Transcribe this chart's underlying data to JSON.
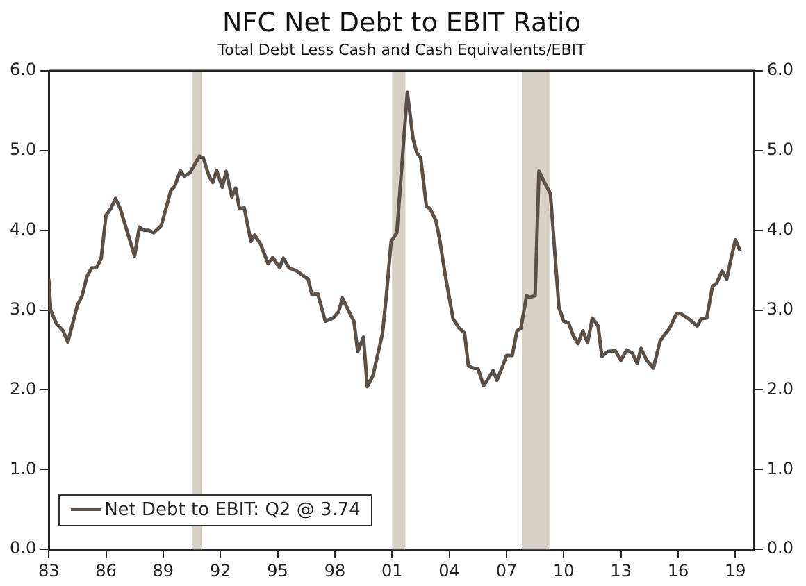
{
  "chart_data": {
    "type": "line",
    "title": "NFC Net Debt to EBIT Ratio",
    "subtitle": "Total Debt Less Cash and Cash Equivalents/EBIT",
    "x": [
      1983.0,
      1983.1,
      1983.4,
      1983.75,
      1984.0,
      1984.5,
      1984.75,
      1985.0,
      1985.25,
      1985.5,
      1985.75,
      1986.0,
      1986.25,
      1986.5,
      1986.75,
      1987.5,
      1987.75,
      1988.0,
      1988.25,
      1988.5,
      1988.9,
      1989.4,
      1989.6,
      1989.9,
      1990.1,
      1990.4,
      1990.9,
      1991.1,
      1991.4,
      1991.6,
      1991.8,
      1992.1,
      1992.3,
      1992.6,
      1992.8,
      1993.0,
      1993.25,
      1993.6,
      1993.8,
      1994.1,
      1994.5,
      1994.75,
      1995.1,
      1995.3,
      1995.6,
      1996.0,
      1996.4,
      1996.6,
      1996.8,
      1997.1,
      1997.5,
      1997.9,
      1998.2,
      1998.4,
      1998.7,
      1999.0,
      1999.2,
      1999.5,
      1999.7,
      2000.0,
      2000.5,
      2000.7,
      2000.95,
      2001.25,
      2001.8,
      2002.1,
      2002.3,
      2002.5,
      2002.8,
      2003.0,
      2003.3,
      2003.5,
      2003.8,
      2004.2,
      2004.5,
      2004.8,
      2005.0,
      2005.3,
      2005.5,
      2005.8,
      2006.3,
      2006.5,
      2006.8,
      2007.0,
      2007.3,
      2007.55,
      2007.75,
      2008.05,
      2008.2,
      2008.5,
      2008.7,
      2008.95,
      2009.3,
      2009.75,
      2010.0,
      2010.25,
      2010.5,
      2010.75,
      2011.0,
      2011.25,
      2011.5,
      2011.8,
      2012.0,
      2012.3,
      2012.7,
      2013.0,
      2013.3,
      2013.6,
      2013.85,
      2014.05,
      2014.35,
      2014.7,
      2015.05,
      2015.25,
      2015.55,
      2015.9,
      2016.1,
      2016.5,
      2017.0,
      2017.2,
      2017.5,
      2017.8,
      2018.0,
      2018.3,
      2018.55,
      2018.75,
      2019.0,
      2019.25
    ],
    "series": [
      {
        "name": "Net Debt to EBIT: Q2 @ 3.74",
        "color": "#5b5047",
        "values": [
          3.39,
          3.0,
          2.83,
          2.74,
          2.6,
          3.06,
          3.18,
          3.42,
          3.53,
          3.53,
          3.65,
          4.19,
          4.27,
          4.4,
          4.27,
          3.68,
          4.04,
          4.0,
          4.0,
          3.97,
          4.06,
          4.5,
          4.55,
          4.75,
          4.68,
          4.72,
          4.93,
          4.91,
          4.68,
          4.6,
          4.75,
          4.54,
          4.74,
          4.42,
          4.53,
          4.27,
          4.28,
          3.86,
          3.94,
          3.83,
          3.58,
          3.66,
          3.53,
          3.65,
          3.53,
          3.49,
          3.42,
          3.39,
          3.19,
          3.21,
          2.86,
          2.9,
          2.98,
          3.15,
          3.0,
          2.86,
          2.48,
          2.66,
          2.04,
          2.18,
          2.71,
          3.18,
          3.86,
          3.97,
          5.73,
          5.15,
          4.97,
          4.91,
          4.3,
          4.27,
          4.12,
          3.88,
          3.42,
          2.89,
          2.78,
          2.71,
          2.3,
          2.27,
          2.27,
          2.05,
          2.24,
          2.12,
          2.3,
          2.43,
          2.43,
          2.74,
          2.77,
          3.18,
          3.16,
          3.18,
          4.74,
          4.62,
          4.46,
          3.03,
          2.86,
          2.84,
          2.68,
          2.58,
          2.74,
          2.59,
          2.9,
          2.8,
          2.42,
          2.48,
          2.49,
          2.37,
          2.5,
          2.46,
          2.33,
          2.52,
          2.37,
          2.27,
          2.61,
          2.68,
          2.77,
          2.95,
          2.96,
          2.9,
          2.8,
          2.89,
          2.9,
          3.3,
          3.33,
          3.49,
          3.39,
          3.62,
          3.88,
          3.74
        ]
      }
    ],
    "xlim": [
      1983,
      2020
    ],
    "xticks": [
      {
        "value": 1983,
        "label": "83"
      },
      {
        "value": 1986,
        "label": "86"
      },
      {
        "value": 1989,
        "label": "89"
      },
      {
        "value": 1992,
        "label": "92"
      },
      {
        "value": 1995,
        "label": "95"
      },
      {
        "value": 1998,
        "label": "98"
      },
      {
        "value": 2001,
        "label": "01"
      },
      {
        "value": 2004,
        "label": "04"
      },
      {
        "value": 2007,
        "label": "07"
      },
      {
        "value": 2010,
        "label": "10"
      },
      {
        "value": 2013,
        "label": "13"
      },
      {
        "value": 2016,
        "label": "16"
      },
      {
        "value": 2019,
        "label": "19"
      }
    ],
    "ylim": [
      0,
      6
    ],
    "yticks": [
      {
        "value": 0,
        "label": "0.0"
      },
      {
        "value": 1,
        "label": "1.0"
      },
      {
        "value": 2,
        "label": "2.0"
      },
      {
        "value": 3,
        "label": "3.0"
      },
      {
        "value": 4,
        "label": "4.0"
      },
      {
        "value": 5,
        "label": "5.0"
      },
      {
        "value": 6,
        "label": "6.0"
      }
    ],
    "y2lim": [
      0,
      6
    ],
    "y2ticks": [
      {
        "value": 0,
        "label": "0.0"
      },
      {
        "value": 1,
        "label": "1.0"
      },
      {
        "value": 2,
        "label": "2.0"
      },
      {
        "value": 3,
        "label": "3.0"
      },
      {
        "value": 4,
        "label": "4.0"
      },
      {
        "value": 5,
        "label": "5.0"
      },
      {
        "value": 6,
        "label": "6.0"
      }
    ],
    "bands": [
      {
        "axis": "x",
        "from": 1990.5,
        "to": 1991.05,
        "color": "#d6d1c4"
      },
      {
        "axis": "x",
        "from": 2001.0,
        "to": 2001.7,
        "color": "#d6d1c4"
      },
      {
        "axis": "x",
        "from": 2007.8,
        "to": 2009.25,
        "color": "#d6d1c4"
      }
    ],
    "grid": false,
    "legend": "bottom left",
    "marker": "none",
    "line_style": "solid"
  }
}
